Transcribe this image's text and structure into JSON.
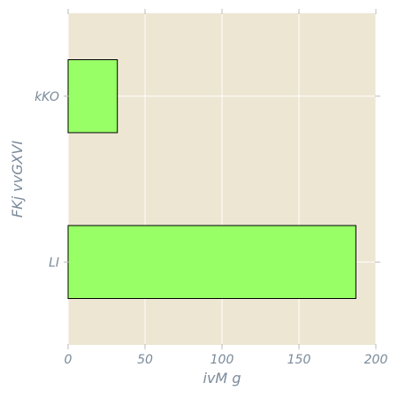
{
  "chart_data": {
    "type": "bar",
    "orientation": "horizontal",
    "categories": [
      "LI",
      "kKO"
    ],
    "values": [
      187,
      32
    ],
    "title": "",
    "xlabel": "ivM g",
    "ylabel": "FKj vvGXVI",
    "xlim": [
      0,
      200
    ],
    "xticks": [
      0,
      50,
      100,
      150,
      200
    ],
    "grid": true,
    "legend": "none",
    "colors": {
      "plot_background": "#ede6d3",
      "bar_fill": "#99ff66",
      "bar_edge": "#000000",
      "grid": "#ffffff",
      "text": "#7a8a9a",
      "tick": "#bbbbbb"
    }
  }
}
